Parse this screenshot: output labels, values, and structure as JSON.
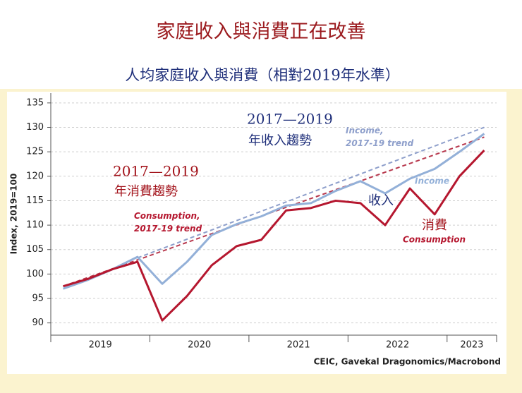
{
  "chart_data": {
    "type": "line",
    "title": "家庭收入與消費正在改善",
    "subtitle": "人均家庭收入與消費（相對2019年水準）",
    "y_label": "Index, 2019=100",
    "source": "CEIC, Gavekal Dragonomics/Macrobond",
    "xlim": [
      2019,
      2023.5
    ],
    "xticks": [
      2019,
      2020,
      2021,
      2022,
      2023
    ],
    "ylim": [
      87.5,
      137
    ],
    "yticks": [
      90,
      95,
      100,
      105,
      110,
      115,
      120,
      125,
      130,
      135
    ],
    "grid": true,
    "series": [
      {
        "name": "Income, 2017-19 trend",
        "color": "#8e9fcb",
        "dashed": true,
        "x": [
          2019.875,
          2023.375
        ],
        "values": [
          103.3,
          130
        ]
      },
      {
        "name": "Consumption, 2017-19 trend",
        "color": "#b8394e",
        "dashed": true,
        "x": [
          2019.125,
          2023.375
        ],
        "values": [
          97.5,
          128
        ]
      },
      {
        "name": "Income",
        "color": "#93b0d8",
        "dashed": false,
        "x": [
          2019.125,
          2019.375,
          2019.625,
          2019.875,
          2020.125,
          2020.375,
          2020.625,
          2020.875,
          2021.125,
          2021.375,
          2021.625,
          2021.875,
          2022.125,
          2022.375,
          2022.625,
          2022.875,
          2023.125,
          2023.375
        ],
        "values": [
          97,
          98.8,
          101,
          103.5,
          98,
          102.5,
          108,
          110.2,
          111.8,
          114,
          114.5,
          117,
          119,
          116.5,
          119.5,
          121.5,
          125,
          128.7
        ]
      },
      {
        "name": "Consumption",
        "color": "#b5172f",
        "dashed": false,
        "x": [
          2019.125,
          2019.375,
          2019.625,
          2019.875,
          2020.125,
          2020.375,
          2020.625,
          2020.875,
          2021.125,
          2021.375,
          2021.625,
          2021.875,
          2022.125,
          2022.375,
          2022.625,
          2022.875,
          2023.125,
          2023.375
        ],
        "values": [
          97.5,
          99,
          101,
          102.5,
          90.5,
          95.5,
          101.8,
          105.7,
          107,
          113,
          113.5,
          115,
          114.5,
          110,
          117.5,
          112.2,
          120,
          125.3
        ]
      }
    ],
    "annotations": [
      "2017—2019",
      "年收入趨勢",
      "2017—2019",
      "年消費趨勢",
      "收入",
      "消費"
    ]
  }
}
